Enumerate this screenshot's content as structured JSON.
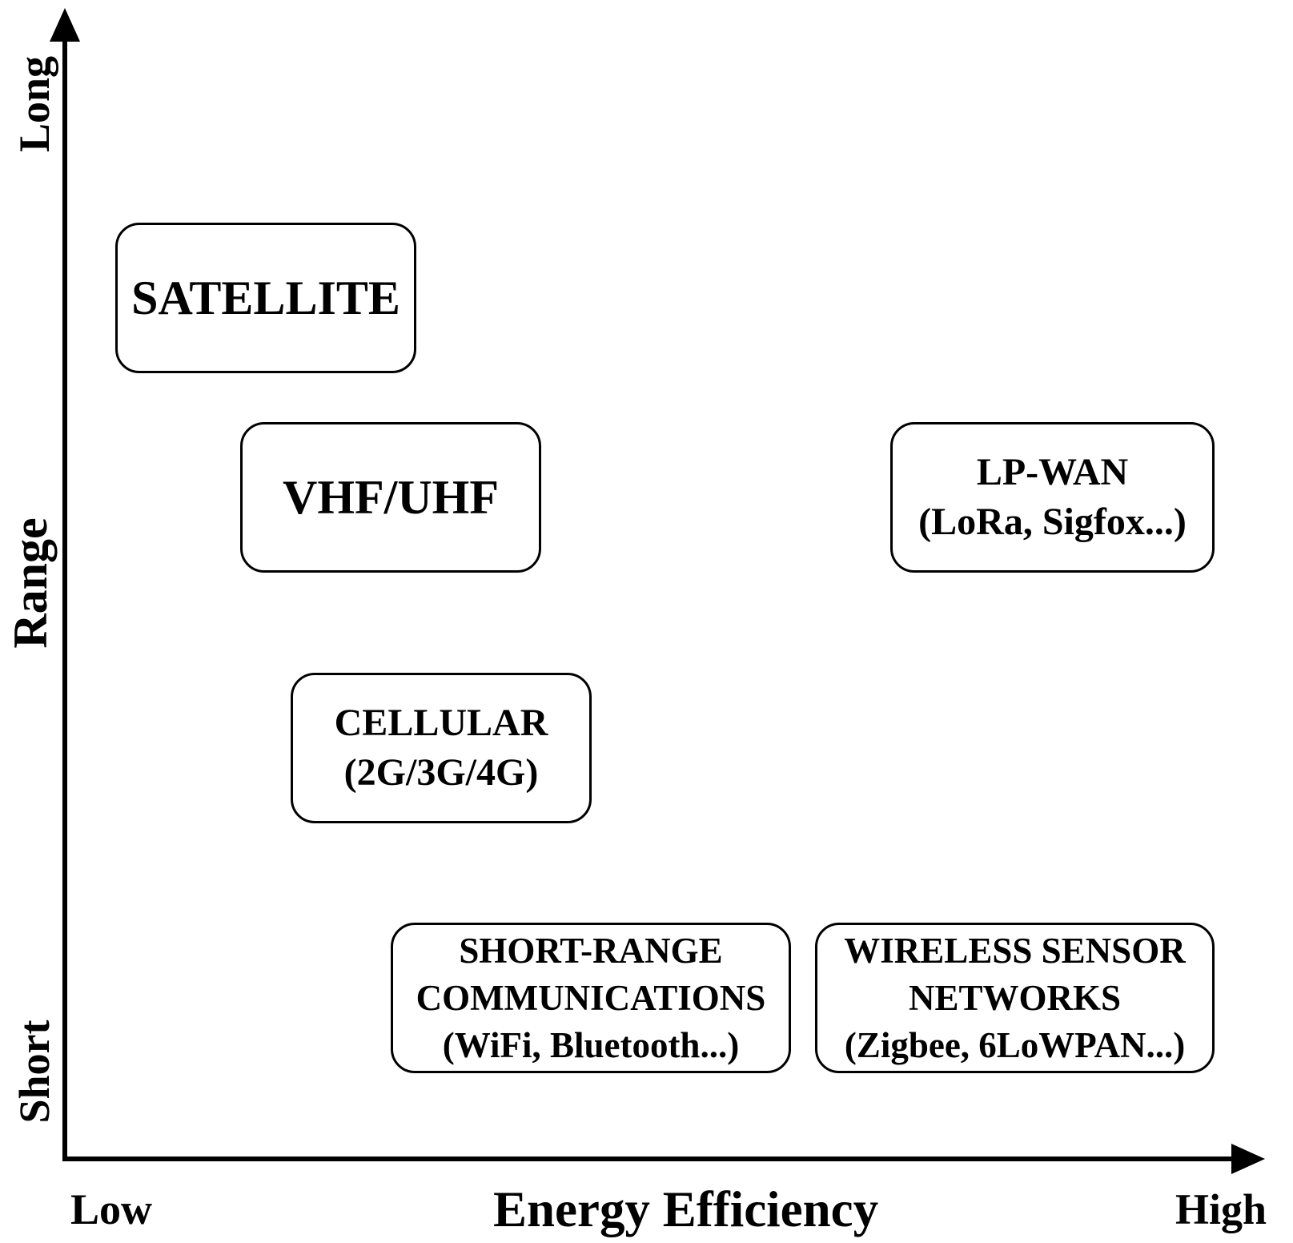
{
  "axes": {
    "x_title": "Energy Efficiency",
    "x_low": "Low",
    "x_high": "High",
    "y_title": "Range",
    "y_low": "Short",
    "y_high": "Long"
  },
  "boxes": {
    "satellite": {
      "lines": [
        "SATELLITE"
      ]
    },
    "vhf": {
      "lines": [
        "VHF/UHF"
      ]
    },
    "lpwan": {
      "lines": [
        "LP-WAN",
        "(LoRa, Sigfox...)"
      ]
    },
    "cellular": {
      "lines": [
        "CELLULAR",
        "(2G/3G/4G)"
      ]
    },
    "short_range": {
      "lines": [
        "SHORT-RANGE",
        "COMMUNICATIONS",
        "(WiFi, Bluetooth...)"
      ]
    },
    "wsn": {
      "lines": [
        "WIRELESS SENSOR",
        "NETWORKS",
        "(Zigbee, 6LoWPAN...)"
      ]
    }
  }
}
